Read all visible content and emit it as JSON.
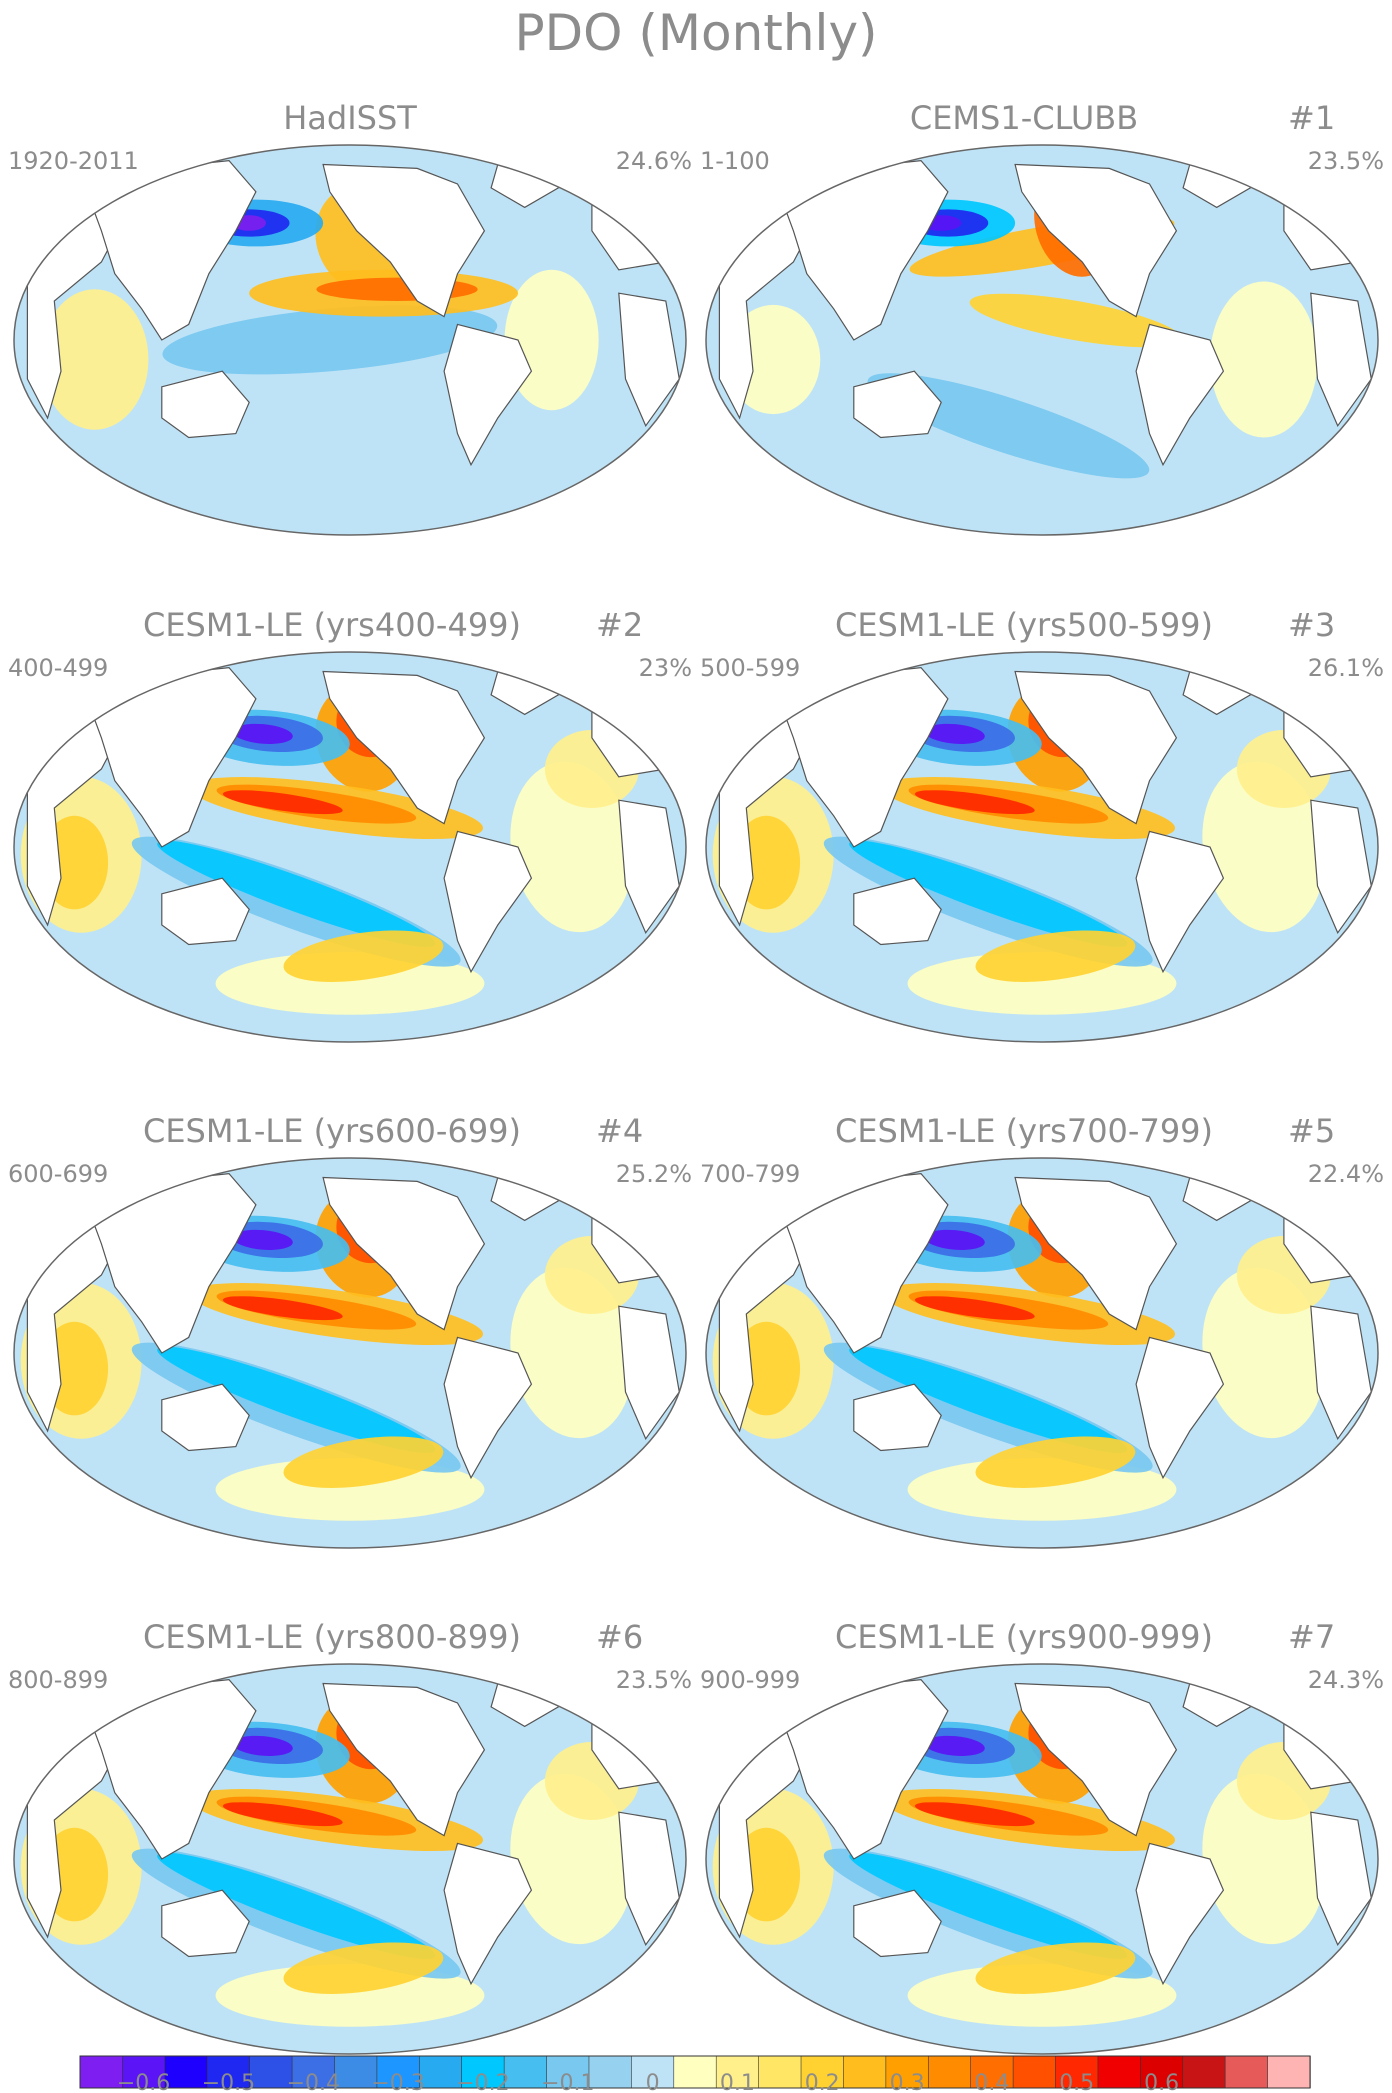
{
  "title": "PDO (Monthly)",
  "colors": {
    "ocean_base": "#bfe3f6",
    "land": "#ffffff",
    "outline": "#666666",
    "coast": "#555555",
    "text": "#8c8c8c"
  },
  "panels": [
    {
      "title": "HadISST",
      "member": "",
      "years": "1920-2011",
      "variance": "24.6%"
    },
    {
      "title": "CEMS1-CLUBB",
      "member": "#1",
      "years": "1-100",
      "variance": "23.5%"
    },
    {
      "title": "CESM1-LE (yrs400-499)",
      "member": "#2",
      "years": "400-499",
      "variance": "23%"
    },
    {
      "title": "CESM1-LE (yrs500-599)",
      "member": "#3",
      "years": "500-599",
      "variance": "26.1%"
    },
    {
      "title": "CESM1-LE (yrs600-699)",
      "member": "#4",
      "years": "600-699",
      "variance": "25.2%"
    },
    {
      "title": "CESM1-LE (yrs700-799)",
      "member": "#5",
      "years": "700-799",
      "variance": "22.4%"
    },
    {
      "title": "CESM1-LE (yrs800-899)",
      "member": "#6",
      "years": "800-899",
      "variance": "23.5%"
    },
    {
      "title": "CESM1-LE (yrs900-999)",
      "member": "#7",
      "years": "900-999",
      "variance": "24.3%"
    }
  ],
  "colorbar": {
    "colors": [
      "#7e1ef0",
      "#5a14f5",
      "#1e00ff",
      "#1e28f0",
      "#2d50e6",
      "#3c6ee6",
      "#3c8ce6",
      "#1e96ff",
      "#28aaf0",
      "#00c8ff",
      "#46bef0",
      "#78c8f0",
      "#96d2f0",
      "#bfe3f6",
      "#ffffc0",
      "#fff08c",
      "#ffe664",
      "#ffd232",
      "#ffbe1e",
      "#ffa000",
      "#ff8c00",
      "#ff6e00",
      "#ff5000",
      "#ff2800",
      "#f00000",
      "#dc0000",
      "#c81414",
      "#e65a5a",
      "#ffb4b4"
    ],
    "tick_labels": [
      "−0.6",
      "−0.5",
      "−0.4",
      "−0.3",
      "−0.2",
      "−0.1",
      "0",
      "0.1",
      "0.2",
      "0.3",
      "0.4",
      "0.5",
      "0.6"
    ]
  }
}
